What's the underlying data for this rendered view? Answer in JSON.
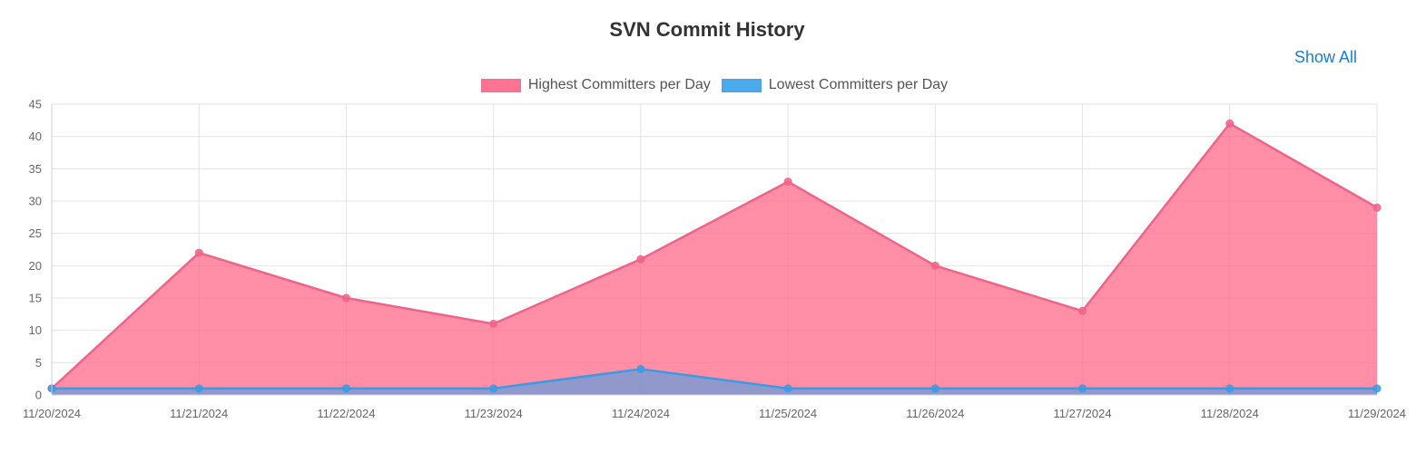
{
  "page": {
    "title": "SVN Commit History",
    "show_all_label": "Show All"
  },
  "chart_data": {
    "type": "area",
    "title": "SVN Commit History",
    "xlabel": "",
    "ylabel": "",
    "categories": [
      "11/20/2024",
      "11/21/2024",
      "11/22/2024",
      "11/23/2024",
      "11/24/2024",
      "11/25/2024",
      "11/26/2024",
      "11/27/2024",
      "11/28/2024",
      "11/29/2024"
    ],
    "ylim": [
      0,
      45
    ],
    "y_ticks": [
      0,
      5,
      10,
      15,
      20,
      25,
      30,
      35,
      40,
      45
    ],
    "grid": true,
    "legend_position": "top",
    "series": [
      {
        "name": "Highest Committers per Day",
        "values": [
          1,
          22,
          15,
          11,
          21,
          33,
          20,
          13,
          42,
          29
        ],
        "line_color": "#f0648a",
        "fill_color": "#ff6384",
        "fill_opacity": 0.72
      },
      {
        "name": "Lowest Committers per Day",
        "values": [
          1,
          1,
          1,
          1,
          4,
          1,
          1,
          1,
          1,
          1
        ],
        "line_color": "#3a9be5",
        "fill_color": "#36a2eb",
        "fill_opacity": 0.55
      }
    ]
  }
}
